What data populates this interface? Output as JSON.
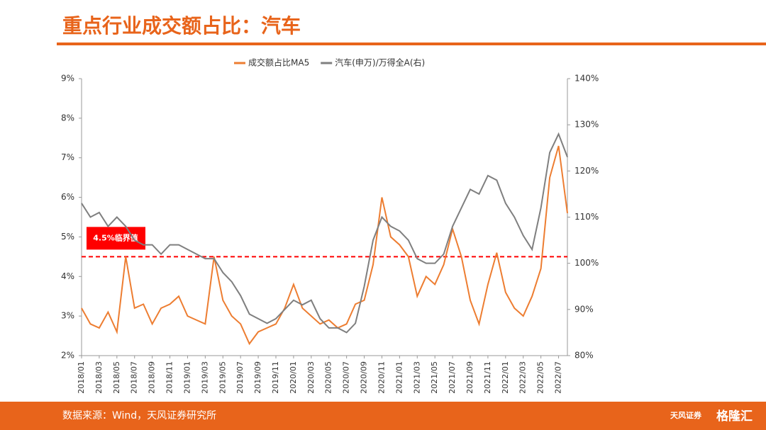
{
  "header": {
    "title": "重点行业成交额占比：汽车"
  },
  "chart_data": {
    "type": "line",
    "categories": [
      "2018/01",
      null,
      "2018/03",
      null,
      "2018/05",
      null,
      "2018/07",
      null,
      "2018/09",
      null,
      "2018/11",
      null,
      "2019/01",
      null,
      "2019/03",
      null,
      "2019/05",
      null,
      "2019/07",
      null,
      "2019/09",
      null,
      "2019/11",
      null,
      "2020/01",
      null,
      "2020/03",
      null,
      "2020/05",
      null,
      "2020/07",
      null,
      "2020/09",
      null,
      "2020/11",
      null,
      "2021/01",
      null,
      "2021/03",
      null,
      "2021/05",
      null,
      "2021/07",
      null,
      "2021/09",
      null,
      "2021/11",
      null,
      "2022/01",
      null,
      "2022/03",
      null,
      "2022/05",
      null,
      "2022/07",
      null
    ],
    "series": [
      {
        "name": "成交额占比MA5",
        "color": "#ED7D31",
        "values": [
          3.2,
          2.8,
          2.7,
          3.1,
          2.6,
          4.5,
          3.2,
          3.3,
          2.8,
          3.2,
          3.3,
          3.5,
          3.0,
          2.9,
          2.8,
          4.5,
          3.4,
          3.0,
          2.8,
          2.3,
          2.6,
          2.7,
          2.8,
          3.2,
          3.8,
          3.2,
          3.0,
          2.8,
          2.9,
          2.7,
          2.8,
          3.3,
          3.4,
          4.3,
          6.0,
          5.0,
          4.8,
          4.5,
          3.5,
          4.0,
          3.8,
          4.3,
          5.2,
          4.5,
          3.4,
          2.8,
          3.8,
          4.6,
          3.6,
          3.2,
          3.0,
          3.5,
          4.2,
          6.5,
          7.3,
          5.6
        ]
      },
      {
        "name": "汽车(申万)/万得全A(右)",
        "color": "#7F7F7F",
        "axis": "y2",
        "values": [
          113,
          110,
          111,
          108,
          110,
          108,
          105,
          104,
          104,
          102,
          104,
          104,
          103,
          102,
          101,
          101,
          98,
          96,
          93,
          89,
          88,
          87,
          88,
          90,
          92,
          91,
          92,
          88,
          86,
          86,
          85,
          87,
          95,
          105,
          110,
          108,
          107,
          105,
          101,
          100,
          100,
          102,
          108,
          112,
          116,
          115,
          119,
          118,
          113,
          110,
          106,
          103,
          112,
          124,
          128,
          123
        ]
      }
    ],
    "ylim": [
      2,
      9
    ],
    "yticks": [
      {
        "value": 2,
        "label": "2%"
      },
      {
        "value": 3,
        "label": "3%"
      },
      {
        "value": 4,
        "label": "4%"
      },
      {
        "value": 5,
        "label": "5%"
      },
      {
        "value": 6,
        "label": "6%"
      },
      {
        "value": 7,
        "label": "7%"
      },
      {
        "value": 8,
        "label": "8%"
      },
      {
        "value": 9,
        "label": "9%"
      }
    ],
    "y2lim": [
      80,
      140
    ],
    "y2ticks": [
      {
        "value": 80,
        "label": "80%"
      },
      {
        "value": 90,
        "label": "90%"
      },
      {
        "value": 100,
        "label": "100%"
      },
      {
        "value": 110,
        "label": "110%"
      },
      {
        "value": 120,
        "label": "120%"
      },
      {
        "value": 130,
        "label": "130%"
      },
      {
        "value": 140,
        "label": "140%"
      }
    ],
    "annotations": [
      {
        "text": "4.5%临界值",
        "value": 4.5,
        "color": "#FF0000"
      }
    ],
    "legend": "top"
  },
  "footer": {
    "source": "数据来源：Wind，天风证券研究所",
    "logo1": "天风证券",
    "logo2": "格隆汇"
  }
}
